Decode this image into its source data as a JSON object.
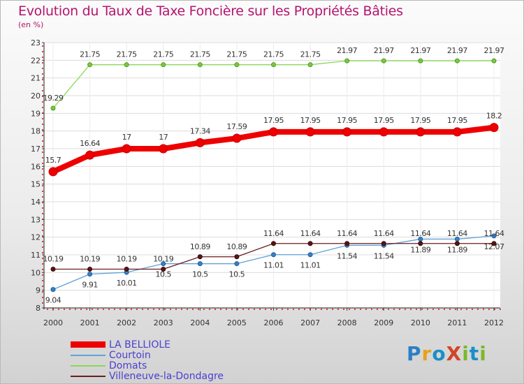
{
  "chart_data": {
    "type": "line",
    "title": "Evolution du Taux de Taxe Foncière sur les Propriétés Bâties",
    "ylabel": "(en %)",
    "xlabel": "",
    "categories": [
      "2000",
      "2001",
      "2002",
      "2003",
      "2004",
      "2005",
      "2006",
      "2007",
      "2008",
      "2009",
      "2010",
      "2011",
      "2012"
    ],
    "ylim": [
      8,
      23
    ],
    "yticks": [
      "8",
      "9",
      "10",
      "11",
      "12",
      "13",
      "14",
      "15",
      "16",
      "17",
      "18",
      "19",
      "20",
      "21",
      "22",
      "23"
    ],
    "series": [
      {
        "name": "LA BELLIOLE",
        "color": "#ee0000",
        "labels": [
          "15.7",
          "16.64",
          "17",
          "17",
          "17.34",
          "17.59",
          "17.95",
          "17.95",
          "17.95",
          "17.95",
          "17.95",
          "17.95",
          "18.2"
        ],
        "values": [
          15.7,
          16.64,
          17,
          17,
          17.34,
          17.59,
          17.95,
          17.95,
          17.95,
          17.95,
          17.95,
          17.95,
          18.2
        ]
      },
      {
        "name": "Courtoin",
        "color": "#5fa2d9",
        "labels": [
          "9.04",
          "9.91",
          "10.01",
          "10.5",
          "10.5",
          "10.5",
          "11.01",
          "11.01",
          "11.54",
          "11.54",
          "11.89",
          "11.89",
          "12.07"
        ],
        "values": [
          9.04,
          9.91,
          10.01,
          10.5,
          10.5,
          10.5,
          11.01,
          11.01,
          11.54,
          11.54,
          11.89,
          11.89,
          12.07
        ]
      },
      {
        "name": "Domats",
        "color": "#8ad858",
        "labels": [
          "19.29",
          "21.75",
          "21.75",
          "21.75",
          "21.75",
          "21.75",
          "21.75",
          "21.75",
          "21.97",
          "21.97",
          "21.97",
          "21.97",
          "21.97"
        ],
        "values": [
          19.29,
          21.75,
          21.75,
          21.75,
          21.75,
          21.75,
          21.75,
          21.75,
          21.97,
          21.97,
          21.97,
          21.97,
          21.97
        ]
      },
      {
        "name": "Villeneuve-la-Dondagre",
        "color": "#6b1d1d",
        "labels": [
          "10.19",
          "10.19",
          "10.19",
          "10.19",
          "10.89",
          "10.89",
          "11.64",
          "11.64",
          "11.64",
          "11.64",
          "11.64",
          "11.64",
          "11.64"
        ],
        "values": [
          10.19,
          10.19,
          10.19,
          10.19,
          10.89,
          10.89,
          11.64,
          11.64,
          11.64,
          11.64,
          11.64,
          11.64,
          11.64
        ]
      }
    ]
  },
  "legend": {
    "items": [
      "LA BELLIOLE",
      "Courtoin",
      "Domats",
      "Villeneuve-la-Dondagre"
    ]
  },
  "logo": {
    "text": "ProXiti"
  }
}
